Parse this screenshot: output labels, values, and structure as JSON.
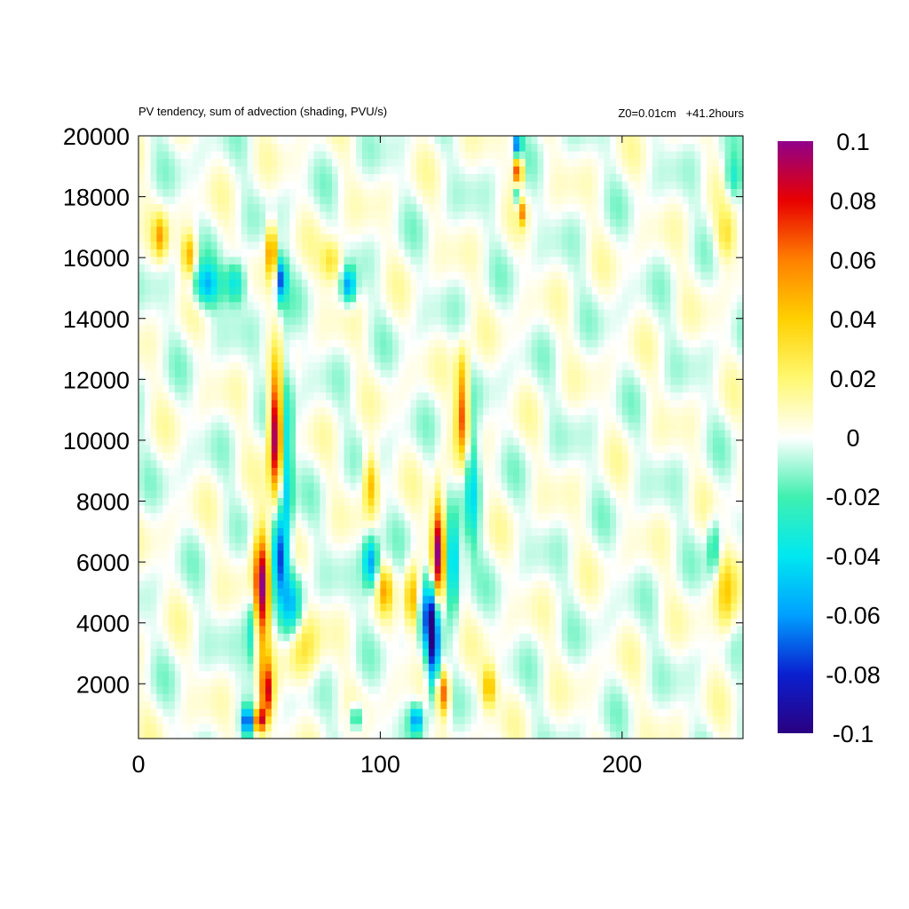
{
  "header": {
    "title": "PV tendency, sum of advection (shading, PVU/s)",
    "info": "Z0=0.01cm   +41.2hours"
  },
  "chart_data": {
    "type": "heatmap",
    "title": "PV tendency, sum of advection (shading, PVU/s)",
    "annotation": "Z0=0.01cm   +41.2hours",
    "xlabel": "",
    "ylabel": "",
    "xlim": [
      0,
      250
    ],
    "ylim": [
      200,
      20000
    ],
    "xticks": [
      0,
      100,
      200
    ],
    "yticks": [
      2000,
      4000,
      6000,
      8000,
      10000,
      12000,
      14000,
      16000,
      18000,
      20000
    ],
    "colorbar": {
      "range": [
        -0.1,
        0.1
      ],
      "ticks": [
        0.1,
        0.08,
        0.06,
        0.04,
        0.02,
        0,
        -0.02,
        -0.04,
        -0.06,
        -0.08,
        -0.1
      ],
      "tick_labels": [
        "0.1",
        "0.08",
        "0.06",
        "0.04",
        "0.02",
        "0",
        "-0.02",
        "-0.04",
        "-0.06",
        "-0.08",
        "-0.1"
      ],
      "colors": {
        "-0.1": "#2a0080",
        "-0.08": "#0a20d0",
        "-0.06": "#00a0ff",
        "-0.04": "#00e8f0",
        "-0.02": "#40f0b0",
        "0": "#ffffff",
        "0.02": "#fff870",
        "0.04": "#ffd000",
        "0.06": "#ff8000",
        "0.08": "#e80000",
        "0.1": "#90008a"
      }
    },
    "grid_cols": 100,
    "grid_rows": 80,
    "features": [
      {
        "x": 57,
        "y": 10300,
        "sx": 2.0,
        "sy": 1400,
        "v": 0.11
      },
      {
        "x": 51,
        "y": 5200,
        "sx": 2.4,
        "sy": 1300,
        "v": 0.1
      },
      {
        "x": 53,
        "y": 1700,
        "sx": 1.8,
        "sy": 700,
        "v": 0.08
      },
      {
        "x": 61,
        "y": 9200,
        "sx": 2.0,
        "sy": 2600,
        "v": -0.05
      },
      {
        "x": 58,
        "y": 6200,
        "sx": 2.0,
        "sy": 900,
        "v": -0.07
      },
      {
        "x": 64,
        "y": 4600,
        "sx": 3.0,
        "sy": 800,
        "v": -0.045
      },
      {
        "x": 67,
        "y": 3200,
        "sx": 5.0,
        "sy": 800,
        "v": 0.03
      },
      {
        "x": 47,
        "y": 3800,
        "sx": 1.8,
        "sy": 900,
        "v": -0.04
      },
      {
        "x": 124,
        "y": 6300,
        "sx": 1.8,
        "sy": 1300,
        "v": 0.1
      },
      {
        "x": 122,
        "y": 3500,
        "sx": 1.8,
        "sy": 1200,
        "v": -0.1
      },
      {
        "x": 126,
        "y": 1700,
        "sx": 1.8,
        "sy": 500,
        "v": 0.07
      },
      {
        "x": 119,
        "y": 4300,
        "sx": 1.8,
        "sy": 900,
        "v": -0.05
      },
      {
        "x": 130,
        "y": 6000,
        "sx": 2.0,
        "sy": 1000,
        "v": -0.06
      },
      {
        "x": 134,
        "y": 10800,
        "sx": 1.8,
        "sy": 900,
        "v": 0.065
      },
      {
        "x": 134,
        "y": 12300,
        "sx": 2.0,
        "sy": 700,
        "v": 0.03
      },
      {
        "x": 138,
        "y": 8500,
        "sx": 2.0,
        "sy": 1500,
        "v": -0.04
      },
      {
        "x": 113,
        "y": 4800,
        "sx": 2.0,
        "sy": 700,
        "v": 0.05
      },
      {
        "x": 145,
        "y": 1900,
        "sx": 2.2,
        "sy": 500,
        "v": 0.05
      },
      {
        "x": 96,
        "y": 8600,
        "sx": 2.0,
        "sy": 700,
        "v": 0.045
      },
      {
        "x": 96,
        "y": 6000,
        "sx": 2.2,
        "sy": 600,
        "v": -0.06
      },
      {
        "x": 102,
        "y": 5100,
        "sx": 2.0,
        "sy": 500,
        "v": 0.04
      },
      {
        "x": 157,
        "y": 18800,
        "sx": 1.3,
        "sy": 400,
        "v": 0.09
      },
      {
        "x": 157,
        "y": 19700,
        "sx": 1.0,
        "sy": 300,
        "v": -0.09
      },
      {
        "x": 159,
        "y": 17500,
        "sx": 1.0,
        "sy": 300,
        "v": 0.05
      },
      {
        "x": 157,
        "y": 18200,
        "sx": 1.0,
        "sy": 300,
        "v": -0.06
      },
      {
        "x": 55,
        "y": 16200,
        "sx": 1.3,
        "sy": 600,
        "v": 0.07
      },
      {
        "x": 59,
        "y": 15300,
        "sx": 1.5,
        "sy": 500,
        "v": -0.07
      },
      {
        "x": 28,
        "y": 15100,
        "sx": 4.0,
        "sy": 500,
        "v": -0.05
      },
      {
        "x": 40,
        "y": 15200,
        "sx": 3.0,
        "sy": 500,
        "v": -0.045
      },
      {
        "x": 87,
        "y": 15100,
        "sx": 2.0,
        "sy": 400,
        "v": -0.06
      },
      {
        "x": 21,
        "y": 16100,
        "sx": 2.0,
        "sy": 500,
        "v": 0.05
      },
      {
        "x": 9,
        "y": 16700,
        "sx": 2.0,
        "sy": 500,
        "v": 0.045
      },
      {
        "x": 80,
        "y": 15900,
        "sx": 3.0,
        "sy": 500,
        "v": 0.035
      },
      {
        "x": 45,
        "y": 800,
        "sx": 1.5,
        "sy": 300,
        "v": -0.08
      },
      {
        "x": 50,
        "y": 800,
        "sx": 1.5,
        "sy": 300,
        "v": 0.1
      },
      {
        "x": 115,
        "y": 850,
        "sx": 1.8,
        "sy": 300,
        "v": -0.06
      },
      {
        "x": 90,
        "y": 900,
        "sx": 2.0,
        "sy": 300,
        "v": -0.04
      },
      {
        "x": 243,
        "y": 5000,
        "sx": 3.0,
        "sy": 1000,
        "v": 0.04
      },
      {
        "x": 238,
        "y": 6500,
        "sx": 2.0,
        "sy": 700,
        "v": -0.03
      },
      {
        "x": 243,
        "y": 16700,
        "sx": 3.0,
        "sy": 600,
        "v": 0.03
      },
      {
        "x": 246,
        "y": 18600,
        "sx": 2.5,
        "sy": 500,
        "v": -0.03
      }
    ]
  }
}
